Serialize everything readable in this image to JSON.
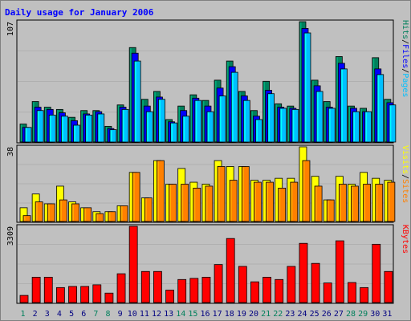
{
  "chart_data": {
    "type": "bar",
    "title": "Daily usage for January 2006",
    "categories": [
      "1",
      "2",
      "3",
      "4",
      "5",
      "6",
      "7",
      "8",
      "9",
      "10",
      "11",
      "12",
      "13",
      "14",
      "15",
      "16",
      "17",
      "18",
      "19",
      "20",
      "21",
      "22",
      "23",
      "24",
      "25",
      "26",
      "27",
      "28",
      "29",
      "30",
      "31"
    ],
    "weekend_days": [
      "1",
      "7",
      "8",
      "14",
      "15",
      "21",
      "22",
      "28",
      "29"
    ],
    "panels": [
      {
        "ymax_label": "107",
        "ymax": 107,
        "side_label": [
          "Hits",
          "/",
          "Files",
          "/",
          "Pages"
        ],
        "side_label_colors": [
          "#00805c",
          "#000000",
          "#0000ff",
          "#000000",
          "#00c0ff"
        ],
        "series": [
          {
            "name": "Hits",
            "color": "#00805c",
            "values": [
              16,
              36,
              31,
              29,
              22,
              28,
              28,
              14,
              33,
              84,
              38,
              45,
              20,
              32,
              42,
              37,
              55,
              72,
              45,
              28,
              54,
              34,
              32,
              107,
              55,
              36,
              76,
              32,
              30,
              75,
              38
            ]
          },
          {
            "name": "Files",
            "color": "#0000ff",
            "values": [
              13,
              31,
              29,
              26,
              19,
              25,
              27,
              12,
              31,
              79,
              32,
              40,
              18,
              28,
              39,
              32,
              48,
              67,
              41,
              23,
              46,
              31,
              30,
              101,
              50,
              31,
              70,
              30,
              27,
              65,
              35
            ]
          },
          {
            "name": "Pages",
            "color": "#00c0ff",
            "values": [
              13,
              28,
              24,
              23,
              15,
              24,
              25,
              11,
              29,
              72,
              27,
              38,
              17,
              23,
              37,
              27,
              41,
              62,
              37,
              20,
              43,
              30,
              29,
              97,
              45,
              30,
              65,
              27,
              27,
              60,
              33
            ]
          }
        ]
      },
      {
        "ymax_label": "38",
        "ymax": 38,
        "side_label": [
          "Visits",
          "/",
          "Sites"
        ],
        "side_label_colors": [
          "#ffff00",
          "#000000",
          "#ff8000"
        ],
        "series": [
          {
            "name": "Visits",
            "color": "#ffff00",
            "values": [
              7,
              14,
              9,
              18,
              10,
              7,
              5,
              5,
              8,
              25,
              12,
              31,
              19,
              27,
              20,
              19,
              31,
              28,
              28,
              21,
              21,
              22,
              22,
              38,
              23,
              11,
              23,
              19,
              25,
              22,
              21
            ]
          },
          {
            "name": "Sites",
            "color": "#ff8000",
            "values": [
              3,
              10,
              9,
              11,
              9,
              7,
              4,
              5,
              8,
              25,
              12,
              31,
              19,
              19,
              17,
              18,
              28,
              21,
              28,
              20,
              20,
              17,
              20,
              31,
              18,
              11,
              19,
              18,
              19,
              19,
              20
            ]
          }
        ]
      },
      {
        "ymax_label": "3309",
        "ymax": 3309,
        "side_label": [
          "KBytes"
        ],
        "side_label_colors": [
          "#ff0000"
        ],
        "series": [
          {
            "name": "KBytes",
            "color": "#ff0000",
            "values": [
              310,
              1100,
              1100,
              650,
              700,
              700,
              770,
              410,
              1250,
              3309,
              1350,
              1350,
              540,
              1000,
              1050,
              1100,
              1650,
              2780,
              1570,
              900,
              1100,
              1000,
              1570,
              2570,
              1700,
              850,
              2680,
              870,
              650,
              2530,
              1350
            ]
          }
        ]
      }
    ],
    "colors": {
      "background": "#c0c0c0",
      "plot_area": "#c0c0c0",
      "title": "#0000ff",
      "day_label": "#000080",
      "weekend_label": "#00805c",
      "gridline": "#b0b0b0"
    }
  }
}
